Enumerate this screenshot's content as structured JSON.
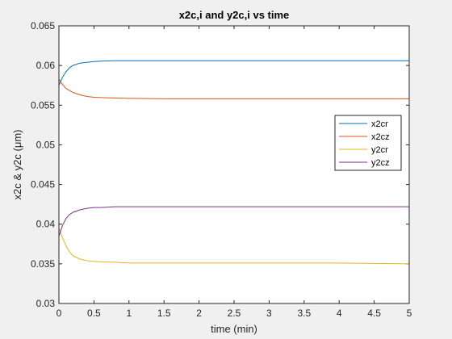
{
  "chart_data": {
    "type": "line",
    "title": "x2c,i and y2c,i vs time",
    "xlabel": "time (min)",
    "ylabel": "x2c & y2c (μm)",
    "xlim": [
      0,
      5
    ],
    "ylim": [
      0.03,
      0.065
    ],
    "xticks": [
      0,
      0.5,
      1,
      1.5,
      2,
      2.5,
      3,
      3.5,
      4,
      4.5,
      5
    ],
    "xtick_labels": [
      "0",
      "0.5",
      "1",
      "1.5",
      "2",
      "2.5",
      "3",
      "3.5",
      "4",
      "4.5",
      "5"
    ],
    "yticks": [
      0.03,
      0.035,
      0.04,
      0.045,
      0.05,
      0.055,
      0.06,
      0.065
    ],
    "ytick_labels": [
      "0.03",
      "0.035",
      "0.04",
      "0.045",
      "0.05",
      "0.055",
      "0.06",
      "0.065"
    ],
    "grid": false,
    "legend_position": "right",
    "series": [
      {
        "name": "x2cr",
        "color": "#0072bd",
        "x": [
          0,
          0.05,
          0.1,
          0.15,
          0.2,
          0.3,
          0.4,
          0.5,
          0.6,
          0.8,
          1.0,
          1.5,
          2,
          3,
          4,
          5
        ],
        "y": [
          0.0575,
          0.0585,
          0.0592,
          0.0597,
          0.06,
          0.0603,
          0.0604,
          0.0605,
          0.06055,
          0.0606,
          0.0606,
          0.0606,
          0.0606,
          0.0606,
          0.0606,
          0.0606
        ]
      },
      {
        "name": "x2cz",
        "color": "#d95319",
        "x": [
          0,
          0.05,
          0.1,
          0.2,
          0.3,
          0.4,
          0.5,
          0.6,
          0.8,
          1.0,
          1.5,
          2,
          3,
          4,
          5
        ],
        "y": [
          0.0583,
          0.0576,
          0.0571,
          0.0566,
          0.0563,
          0.0561,
          0.056,
          0.05595,
          0.0559,
          0.05585,
          0.0558,
          0.0558,
          0.0558,
          0.0558,
          0.0558
        ]
      },
      {
        "name": "y2cr",
        "color": "#edb120",
        "x": [
          0,
          0.05,
          0.1,
          0.15,
          0.2,
          0.3,
          0.4,
          0.5,
          0.6,
          0.8,
          1.0,
          1.5,
          2,
          3,
          4,
          5
        ],
        "y": [
          0.0395,
          0.0383,
          0.0373,
          0.0365,
          0.036,
          0.0356,
          0.0354,
          0.0353,
          0.03525,
          0.0352,
          0.0351,
          0.0351,
          0.0351,
          0.0351,
          0.0351,
          0.035
        ]
      },
      {
        "name": "y2cz",
        "color": "#7e2f8e",
        "x": [
          0,
          0.05,
          0.1,
          0.15,
          0.2,
          0.3,
          0.4,
          0.5,
          0.6,
          0.8,
          1.0,
          1.5,
          2,
          3,
          4,
          5
        ],
        "y": [
          0.0385,
          0.0398,
          0.0407,
          0.0412,
          0.0415,
          0.0418,
          0.042,
          0.0421,
          0.0421,
          0.0422,
          0.0422,
          0.0422,
          0.0422,
          0.0422,
          0.0422,
          0.0422
        ]
      }
    ]
  }
}
